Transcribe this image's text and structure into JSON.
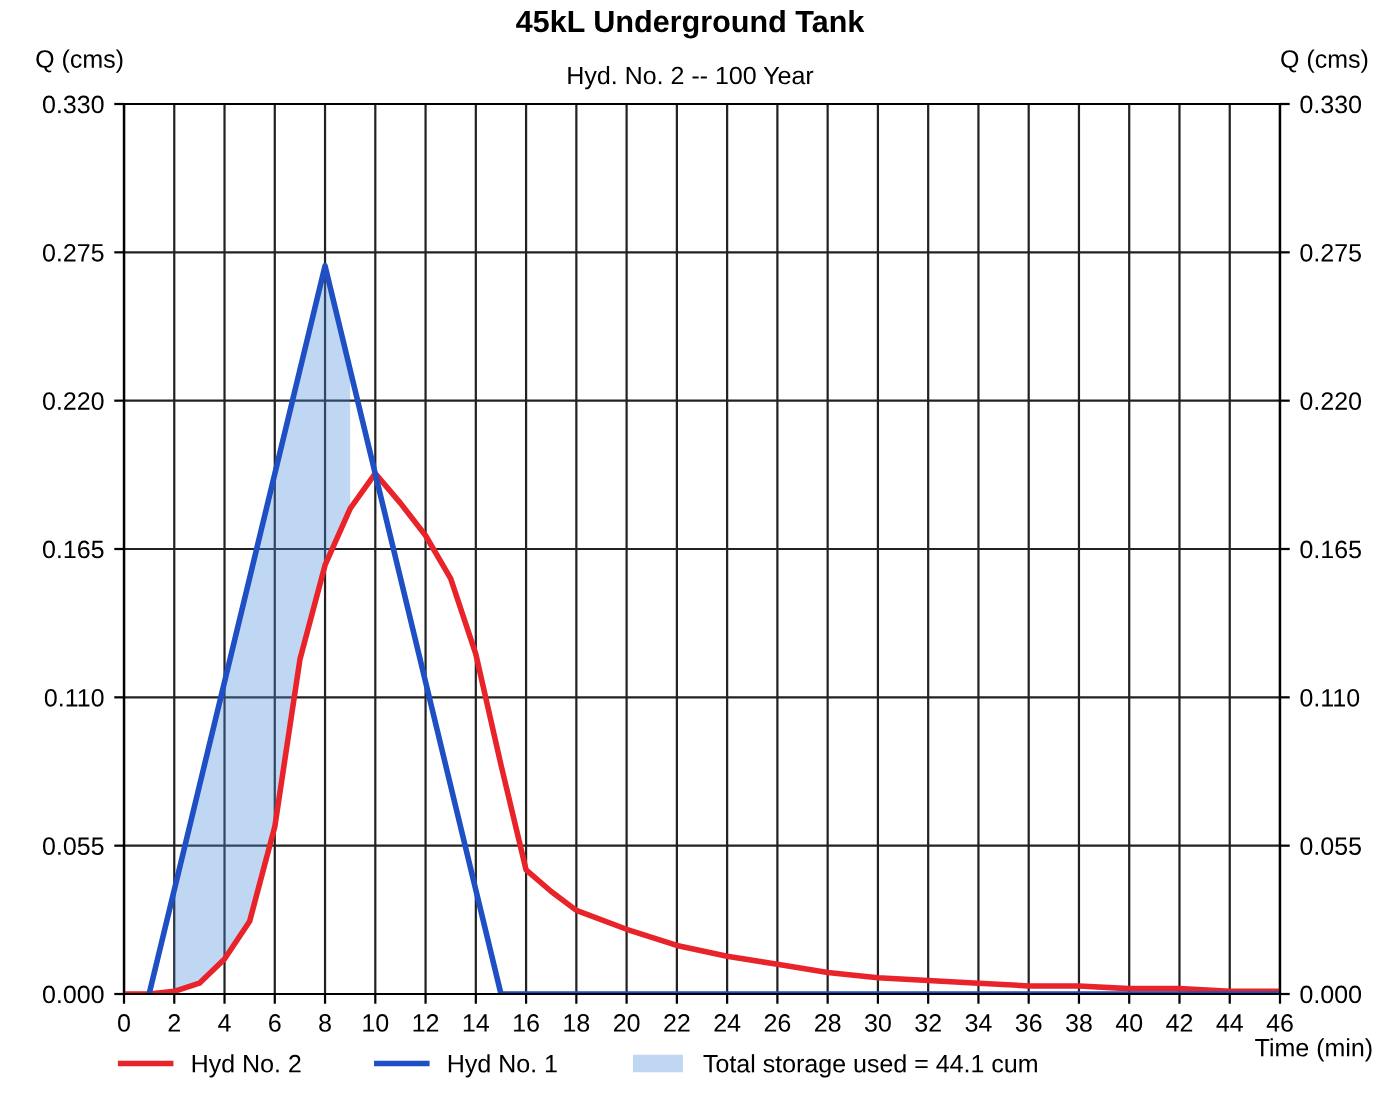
{
  "chart_data": {
    "type": "line",
    "title": "45kL Underground Tank",
    "subtitle": "Hyd. No. 2 -- 100 Year",
    "xlabel": "Time (min)",
    "ylabel": "Q (cms)",
    "y2label": "Q (cms)",
    "xlim": [
      0,
      46
    ],
    "xticks": [
      0,
      2,
      4,
      6,
      8,
      10,
      12,
      14,
      16,
      18,
      20,
      22,
      24,
      26,
      28,
      30,
      32,
      34,
      36,
      38,
      40,
      42,
      44,
      46
    ],
    "ylim": [
      0,
      0.33
    ],
    "yticks": [
      {
        "value": 0,
        "label": "0.000"
      },
      {
        "value": 0.055,
        "label": "0.055"
      },
      {
        "value": 0.11,
        "label": "0.110"
      },
      {
        "value": 0.165,
        "label": "0.165"
      },
      {
        "value": 0.22,
        "label": "0.220"
      },
      {
        "value": 0.275,
        "label": "0.275"
      },
      {
        "value": 0.33,
        "label": "0.330"
      }
    ],
    "y2lim": [
      0,
      0.33
    ],
    "y2ticks": [
      {
        "value": 0,
        "label": "0.000"
      },
      {
        "value": 0.055,
        "label": "0.055"
      },
      {
        "value": 0.11,
        "label": "0.110"
      },
      {
        "value": 0.165,
        "label": "0.165"
      },
      {
        "value": 0.22,
        "label": "0.220"
      },
      {
        "value": 0.275,
        "label": "0.275"
      },
      {
        "value": 0.33,
        "label": "0.330"
      }
    ],
    "grid": true,
    "legend": "bottom",
    "marker": "none",
    "line_style": "solid",
    "series": [
      {
        "name": "Hyd No. 2",
        "color": "#e8242a",
        "x": [
          0,
          1,
          2,
          3,
          4,
          5,
          6,
          7,
          8,
          9,
          10,
          11,
          12,
          13,
          14,
          15,
          16,
          17,
          18,
          20,
          22,
          24,
          26,
          28,
          30,
          32,
          34,
          36,
          38,
          40,
          42,
          44,
          46
        ],
        "values": [
          0,
          0,
          0.001,
          0.004,
          0.013,
          0.027,
          0.062,
          0.124,
          0.159,
          0.18,
          0.193,
          0.182,
          0.17,
          0.154,
          0.126,
          0.085,
          0.046,
          0.038,
          0.031,
          0.024,
          0.018,
          0.014,
          0.011,
          0.008,
          0.006,
          0.005,
          0.004,
          0.003,
          0.003,
          0.002,
          0.002,
          0.001,
          0.001
        ]
      },
      {
        "name": "Hyd No. 1",
        "color": "#1f4fc4",
        "x": [
          1,
          8,
          15,
          46
        ],
        "values": [
          0,
          0.27,
          0,
          0
        ]
      },
      {
        "name": "Total storage used = 44.1 cum",
        "type": "area",
        "color": "#4a8de0",
        "x": [
          2,
          3,
          4,
          5,
          6,
          7,
          8,
          9
        ],
        "values": [
          0.039,
          0.077,
          0.116,
          0.154,
          0.193,
          0.231,
          0.27,
          0.231
        ]
      }
    ]
  }
}
